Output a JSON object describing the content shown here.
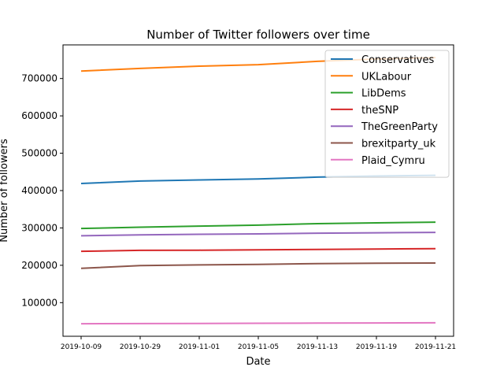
{
  "chart_data": {
    "type": "line",
    "title": "Number of Twitter followers over time",
    "xlabel": "Date",
    "ylabel": "Number of followers",
    "categories": [
      "2019-10-09",
      "2019-10-29",
      "2019-11-01",
      "2019-11-05",
      "2019-11-13",
      "2019-11-19",
      "2019-11-21"
    ],
    "ylim": [
      10000,
      790000
    ],
    "yticks": [
      100000,
      200000,
      300000,
      400000,
      500000,
      600000,
      700000
    ],
    "ytick_labels": [
      "100000",
      "200000",
      "300000",
      "400000",
      "500000",
      "600000",
      "700000"
    ],
    "grid": false,
    "legend_position": "top-right",
    "series": [
      {
        "name": "Conservatives",
        "color": "#1f77b4",
        "values": [
          419000,
          425500,
          428500,
          431000,
          436000,
          439000,
          441000
        ]
      },
      {
        "name": "UKLabour",
        "color": "#ff7f0e",
        "values": [
          720000,
          727000,
          733000,
          737000,
          746000,
          752000,
          756000
        ]
      },
      {
        "name": "LibDems",
        "color": "#2ca02c",
        "values": [
          298500,
          302000,
          305000,
          307500,
          311500,
          313500,
          315500
        ]
      },
      {
        "name": "theSNP",
        "color": "#d62728",
        "values": [
          237500,
          240000,
          240500,
          241500,
          242500,
          243500,
          244500
        ]
      },
      {
        "name": "TheGreenParty",
        "color": "#9467bd",
        "values": [
          279000,
          281500,
          283000,
          284000,
          286000,
          287000,
          288000
        ]
      },
      {
        "name": "brexitparty_uk",
        "color": "#8c564b",
        "values": [
          192000,
          199000,
          201000,
          202500,
          204500,
          205500,
          206000
        ]
      },
      {
        "name": "Plaid_Cymru",
        "color": "#e377c2",
        "values": [
          43500,
          44000,
          44300,
          44700,
          45200,
          45600,
          46000
        ]
      }
    ]
  }
}
